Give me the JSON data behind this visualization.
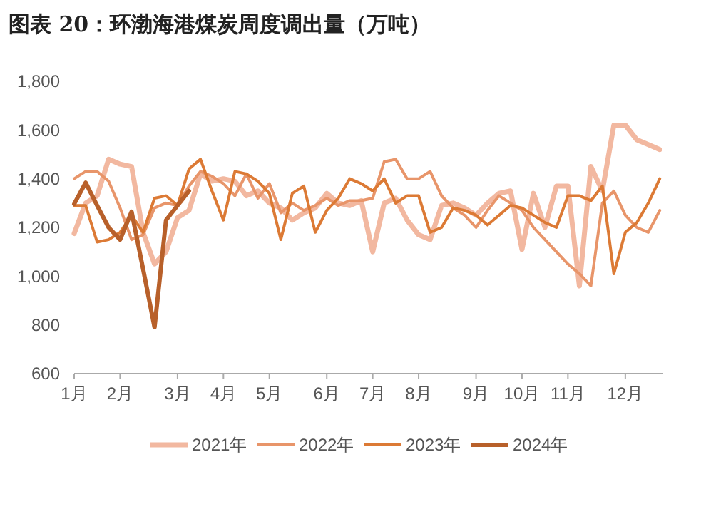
{
  "chart_data": {
    "type": "line",
    "title": "图表 20：环渤海港煤炭周度调出量（万吨）",
    "categories": [
      "1月",
      null,
      null,
      null,
      "2月",
      null,
      null,
      null,
      null,
      "3月",
      null,
      null,
      null,
      "4月",
      null,
      null,
      null,
      "5月",
      null,
      null,
      null,
      null,
      "6月",
      null,
      null,
      null,
      "7月",
      null,
      null,
      null,
      "8月",
      null,
      null,
      null,
      null,
      "9月",
      null,
      null,
      null,
      "10月",
      null,
      null,
      null,
      "11月",
      null,
      null,
      null,
      null,
      "12月",
      null,
      null,
      null
    ],
    "ylim": [
      600,
      1800
    ],
    "yticks": [
      600,
      800,
      {
        "value": 1000,
        "label": "1,000"
      },
      {
        "value": 1200,
        "label": "1,200"
      },
      {
        "value": 1400,
        "label": "1,400"
      },
      {
        "value": 1600,
        "label": "1,600"
      },
      {
        "value": 1800,
        "label": "1,800"
      }
    ],
    "grid": false,
    "legend": "bottom",
    "series": [
      {
        "name": "2021年",
        "color": "#f2b8a0",
        "values": [
          1175,
          1300,
          1330,
          1480,
          1460,
          1450,
          1180,
          1050,
          1100,
          1240,
          1270,
          1420,
          1390,
          1400,
          1390,
          1330,
          1350,
          1300,
          1280,
          1230,
          1260,
          1280,
          1340,
          1300,
          1290,
          1310,
          1100,
          1300,
          1320,
          1230,
          1170,
          1150,
          1290,
          1300,
          1280,
          1250,
          1300,
          1340,
          1350,
          1110,
          1340,
          1200,
          1370,
          1370,
          960,
          1450,
          1350,
          1620,
          1620,
          1560,
          1540,
          1520
        ]
      },
      {
        "name": "2022年",
        "color": "#e8956a",
        "values": [
          1400,
          1430,
          1430,
          1390,
          1280,
          1150,
          1170,
          1280,
          1300,
          1290,
          1370,
          1430,
          1410,
          1380,
          1330,
          1420,
          1320,
          1380,
          1260,
          1300,
          1270,
          1290,
          1320,
          1290,
          1310,
          1310,
          1320,
          1470,
          1480,
          1400,
          1400,
          1430,
          1330,
          1280,
          1250,
          1200,
          1270,
          1330,
          1300,
          1270,
          1200,
          1150,
          1100,
          1050,
          1010,
          960,
          1300,
          1350,
          1250,
          1200,
          1180,
          1270
        ]
      },
      {
        "name": "2023年",
        "color": "#dc7a35",
        "values": [
          1290,
          1290,
          1140,
          1150,
          1180,
          1250,
          1180,
          1320,
          1330,
          1290,
          1440,
          1480,
          1350,
          1230,
          1430,
          1420,
          1390,
          1340,
          1150,
          1340,
          1370,
          1180,
          1270,
          1320,
          1400,
          1380,
          1350,
          1400,
          1300,
          1330,
          1330,
          1180,
          1200,
          1280,
          1270,
          1250,
          1210,
          1250,
          1290,
          1280,
          1250,
          1220,
          1200,
          1330,
          1330,
          1310,
          1370,
          1010,
          1180,
          1220,
          1300,
          1400
        ]
      },
      {
        "name": "2024年",
        "color": "#b8602a",
        "values": [
          1296,
          1384,
          1290,
          1200,
          1150,
          1265,
          1030,
          790,
          1230,
          1290,
          1350,
          null,
          null,
          null,
          null,
          null,
          null,
          null,
          null,
          null,
          null,
          null,
          null,
          null,
          null,
          null,
          null,
          null,
          null,
          null,
          null,
          null,
          null,
          null,
          null,
          null,
          null,
          null,
          null,
          null,
          null,
          null,
          null,
          null,
          null,
          null,
          null,
          null,
          null,
          null,
          null,
          null
        ]
      }
    ]
  }
}
